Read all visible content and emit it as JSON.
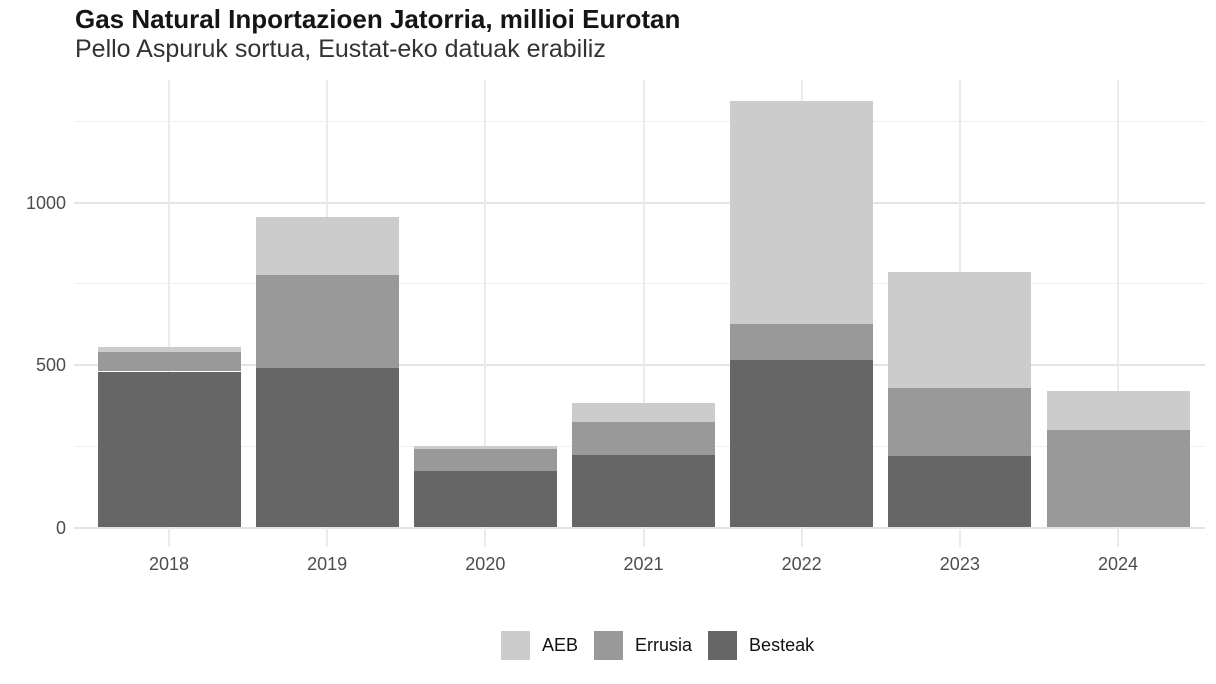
{
  "header": {
    "title": "Gas Natural Inportazioen Jatorria, millioi Eurotan",
    "subtitle": "Pello Aspuruk sortua, Eustat-eko datuak erabiliz"
  },
  "chart_data": {
    "type": "bar",
    "stacked": true,
    "title": "Gas Natural Inportazioen Jatorria, millioi Eurotan",
    "subtitle": "Pello Aspuruk sortua, Eustat-eko datuak erabiliz",
    "xlabel": "",
    "ylabel": "",
    "categories": [
      "2018",
      "2019",
      "2020",
      "2021",
      "2022",
      "2023",
      "2024"
    ],
    "series": [
      {
        "name": "AEB",
        "color": "#cccccc",
        "values": [
          15,
          179,
          8,
          59,
          688,
          357,
          119
        ]
      },
      {
        "name": "Errusia",
        "color": "#999999",
        "values": [
          60,
          287,
          67,
          102,
          110,
          210,
          300
        ]
      },
      {
        "name": "Besteak",
        "color": "#666666",
        "values": [
          480,
          490,
          175,
          223,
          515,
          220,
          0
        ]
      }
    ],
    "totals": [
      555,
      956,
      250,
      384,
      1313,
      787,
      419
    ],
    "ylim": [
      0,
      1377
    ],
    "yticks": [
      0,
      500,
      1000
    ],
    "ytick_labels": [
      "0",
      "500",
      "1000"
    ],
    "yticks_minor": [
      250,
      750,
      1250
    ],
    "grid": true,
    "legend_position": "bottom",
    "colors": {
      "background": "#ffffff",
      "grid_major": "#e4e4e4",
      "grid_minor": "#f0f0f0",
      "axis_text": "#4d4d4d",
      "title_text": "#151515",
      "subtitle_text": "#333333"
    }
  }
}
